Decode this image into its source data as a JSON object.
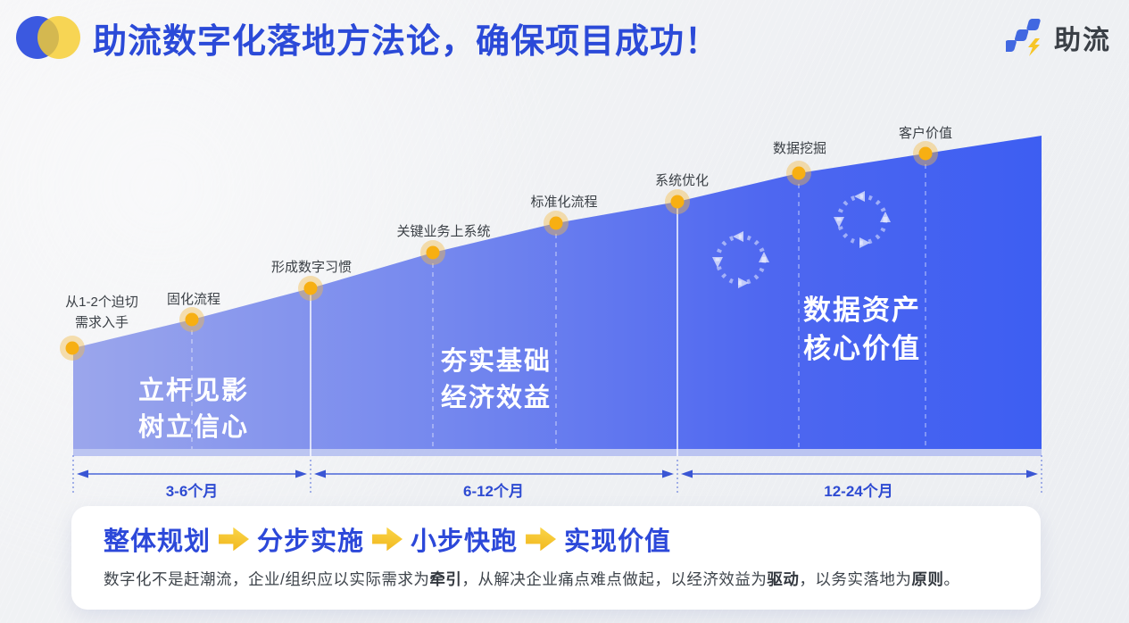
{
  "header": {
    "title": "助流数字化落地方法论，确保项目成功！",
    "brand_name": "助流"
  },
  "colors": {
    "title_blue": "#2b4ad8",
    "ramp_light": "#9ba6ec",
    "ramp_dark": "#3d5ef2",
    "milestone_dot": "#f7af12",
    "timeline_blue": "#3a56d4",
    "step_arrow_yellow": "#f3c02a",
    "logo_blue": "#3b59e0",
    "logo_yellow": "#f6cd2f"
  },
  "diagram": {
    "milestones": [
      {
        "label": "从1-2个迫切需求入手"
      },
      {
        "label": "固化流程"
      },
      {
        "label": "形成数字习惯"
      },
      {
        "label": "关键业务上系统"
      },
      {
        "label": "标准化流程"
      },
      {
        "label": "系统优化"
      },
      {
        "label": "数据挖掘"
      },
      {
        "label": "客户价值"
      }
    ],
    "phases": [
      {
        "line1": "立杆见影",
        "line2": "树立信心",
        "duration": "3-6个月"
      },
      {
        "line1": "夯实基础",
        "line2": "经济效益",
        "duration": "6-12个月"
      },
      {
        "line1": "数据资产",
        "line2": "核心价值",
        "duration": "12-24个月"
      }
    ]
  },
  "footer": {
    "steps": [
      "整体规划",
      "分步实施",
      "小步快跑",
      "实现价值"
    ],
    "note_segments": [
      {
        "t": "数字化不是赶潮流，企业/组织应以实际需求为",
        "b": false
      },
      {
        "t": "牵引",
        "b": true
      },
      {
        "t": "，从解决企业痛点难点做起，以经济效益为",
        "b": false
      },
      {
        "t": "驱动",
        "b": true
      },
      {
        "t": "，以务实落地为",
        "b": false
      },
      {
        "t": "原则",
        "b": true
      },
      {
        "t": "。",
        "b": false
      }
    ]
  }
}
